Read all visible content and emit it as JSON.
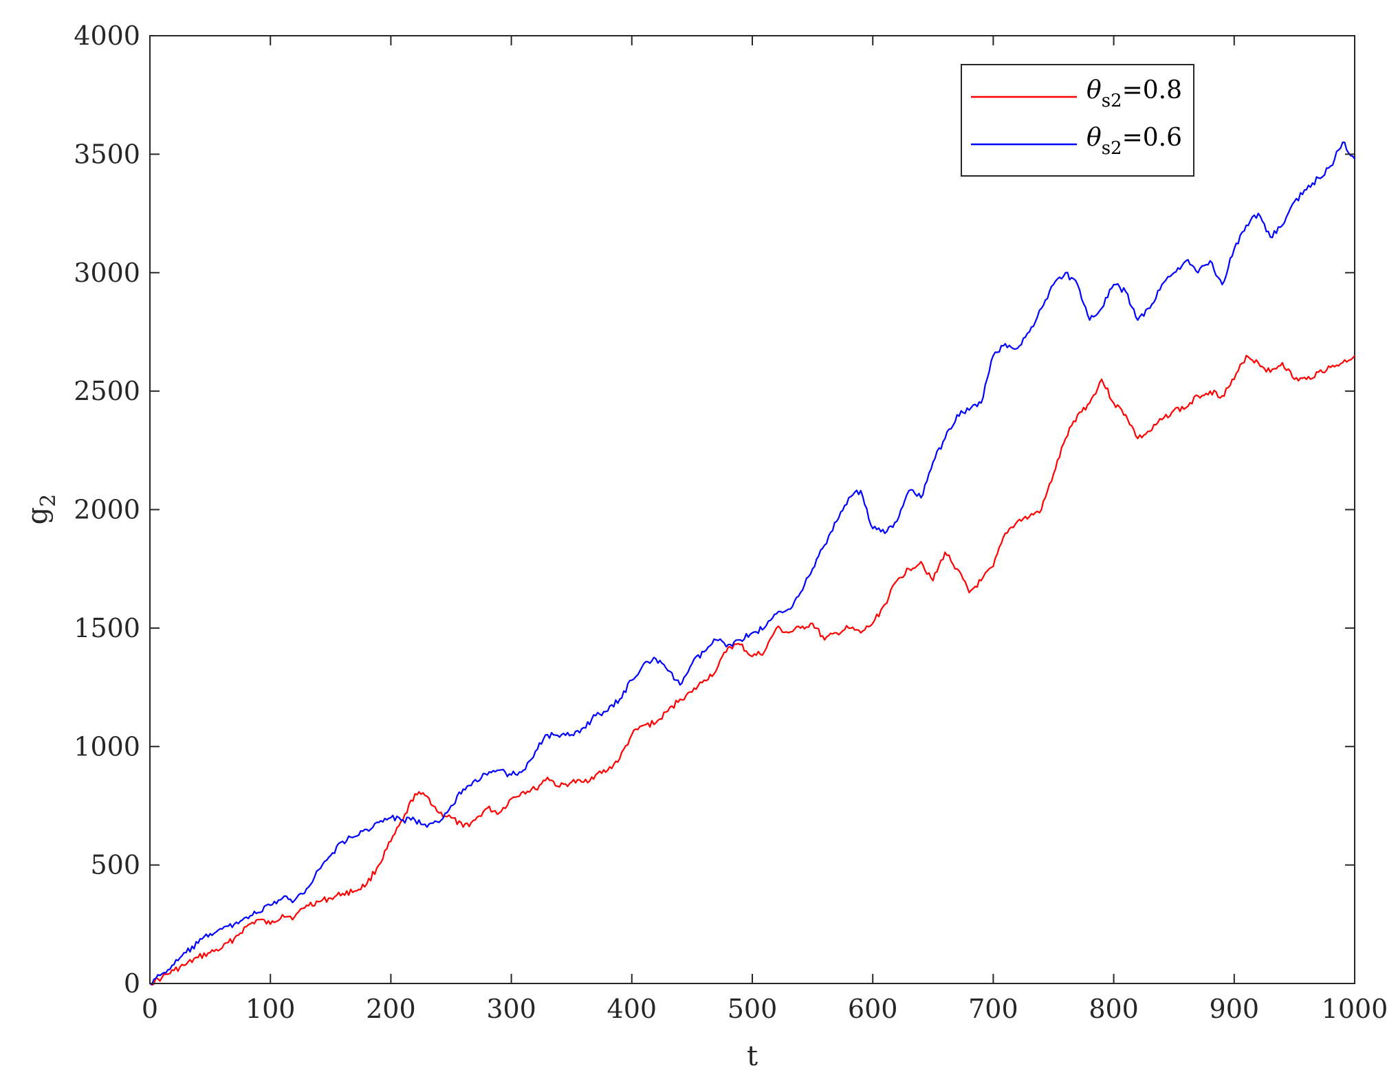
{
  "chart_data": {
    "type": "line",
    "xlabel": "t",
    "ylabel": {
      "base": "g",
      "sub": "2"
    },
    "xlim": [
      0,
      1000
    ],
    "ylim": [
      0,
      4000
    ],
    "xticks": [
      "0",
      "100",
      "200",
      "300",
      "400",
      "500",
      "600",
      "700",
      "800",
      "900",
      "1000"
    ],
    "yticks": [
      "0",
      "500",
      "1000",
      "1500",
      "2000",
      "2500",
      "3000",
      "3500",
      "4000"
    ],
    "grid": false,
    "legend_position": "top-right",
    "series": [
      {
        "name": "θs2=0.8",
        "legend_prefix": "θ",
        "legend_sub": "s2",
        "legend_suffix": "=0.8",
        "color": "#ff0000",
        "x": [
          0,
          10,
          20,
          30,
          40,
          50,
          60,
          70,
          80,
          90,
          100,
          110,
          120,
          130,
          140,
          150,
          160,
          170,
          180,
          190,
          200,
          210,
          220,
          230,
          240,
          250,
          260,
          270,
          280,
          290,
          300,
          310,
          320,
          330,
          340,
          350,
          360,
          370,
          380,
          390,
          400,
          410,
          420,
          430,
          440,
          450,
          460,
          470,
          480,
          490,
          500,
          510,
          520,
          530,
          540,
          550,
          560,
          570,
          580,
          590,
          600,
          610,
          620,
          630,
          640,
          650,
          660,
          670,
          680,
          690,
          700,
          710,
          720,
          730,
          740,
          750,
          760,
          770,
          780,
          790,
          800,
          810,
          820,
          830,
          840,
          850,
          860,
          870,
          880,
          890,
          900,
          910,
          920,
          930,
          940,
          950,
          960,
          970,
          980,
          990,
          1000
        ],
        "y": [
          0,
          25,
          55,
          80,
          110,
          130,
          150,
          190,
          240,
          270,
          250,
          290,
          280,
          330,
          345,
          360,
          380,
          390,
          420,
          500,
          600,
          690,
          800,
          790,
          720,
          700,
          660,
          690,
          740,
          720,
          780,
          810,
          820,
          870,
          830,
          850,
          850,
          880,
          900,
          950,
          1050,
          1090,
          1100,
          1150,
          1200,
          1230,
          1280,
          1320,
          1420,
          1430,
          1380,
          1400,
          1500,
          1480,
          1500,
          1520,
          1450,
          1480,
          1500,
          1480,
          1520,
          1600,
          1700,
          1750,
          1780,
          1700,
          1820,
          1750,
          1650,
          1700,
          1760,
          1900,
          1950,
          1970,
          2000,
          2150,
          2300,
          2400,
          2450,
          2550,
          2450,
          2400,
          2300,
          2330,
          2380,
          2420,
          2430,
          2480,
          2500,
          2480,
          2550,
          2650,
          2620,
          2580,
          2620,
          2550,
          2550,
          2580,
          2600,
          2620,
          2650
        ]
      },
      {
        "name": "θs2=0.6",
        "legend_prefix": "θ",
        "legend_sub": "s2",
        "legend_suffix": "=0.6",
        "color": "#0000ff",
        "x": [
          0,
          10,
          20,
          30,
          40,
          50,
          60,
          70,
          80,
          90,
          100,
          110,
          120,
          130,
          140,
          150,
          160,
          170,
          180,
          190,
          200,
          210,
          220,
          230,
          240,
          250,
          260,
          270,
          280,
          290,
          300,
          310,
          320,
          330,
          340,
          350,
          360,
          370,
          380,
          390,
          400,
          410,
          420,
          430,
          440,
          450,
          460,
          470,
          480,
          490,
          500,
          510,
          520,
          530,
          540,
          550,
          560,
          570,
          580,
          590,
          600,
          610,
          620,
          630,
          640,
          650,
          660,
          670,
          680,
          690,
          700,
          710,
          720,
          730,
          740,
          750,
          760,
          770,
          780,
          790,
          800,
          810,
          820,
          830,
          840,
          850,
          860,
          870,
          880,
          890,
          900,
          910,
          920,
          930,
          940,
          950,
          960,
          970,
          980,
          990,
          1000
        ],
        "y": [
          0,
          40,
          80,
          130,
          170,
          210,
          230,
          250,
          280,
          300,
          330,
          360,
          350,
          400,
          480,
          540,
          600,
          620,
          650,
          680,
          700,
          690,
          690,
          660,
          680,
          750,
          820,
          860,
          880,
          900,
          880,
          900,
          980,
          1050,
          1040,
          1050,
          1080,
          1130,
          1150,
          1200,
          1280,
          1350,
          1370,
          1320,
          1260,
          1350,
          1400,
          1450,
          1430,
          1450,
          1480,
          1500,
          1560,
          1580,
          1650,
          1750,
          1850,
          1950,
          2050,
          2080,
          1920,
          1900,
          1950,
          2080,
          2050,
          2200,
          2300,
          2400,
          2420,
          2450,
          2650,
          2700,
          2680,
          2750,
          2850,
          2950,
          3000,
          2950,
          2800,
          2850,
          2950,
          2920,
          2800,
          2850,
          2950,
          3000,
          3050,
          3000,
          3050,
          2950,
          3100,
          3200,
          3250,
          3150,
          3200,
          3300,
          3350,
          3400,
          3450,
          3550,
          3480
        ]
      }
    ]
  }
}
